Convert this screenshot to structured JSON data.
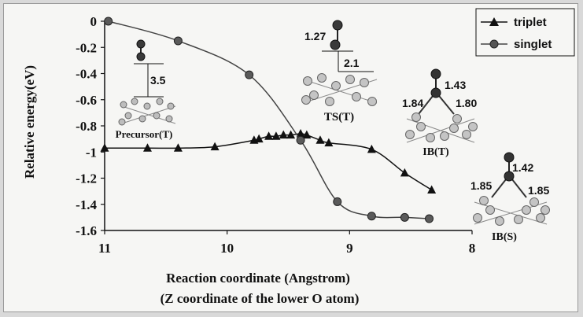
{
  "chart_data": {
    "type": "line",
    "title": "",
    "xlabel": "Reaction coordinate (Angstrom)",
    "xlabel2": "(Z coordinate of the lower O atom)",
    "ylabel": "Relative energy(eV)",
    "xlim": [
      11,
      8
    ],
    "ylim": [
      -1.6,
      0
    ],
    "x_ticks": [
      "11",
      "10",
      "9",
      "8"
    ],
    "y_ticks": [
      "0",
      "-0.2",
      "-0.4",
      "-0.6",
      "-0.8",
      "-1",
      "-1.2",
      "-1.4",
      "-1.6"
    ],
    "legend_position": "top-right",
    "grid": false,
    "series": [
      {
        "name": "triplet",
        "marker": "triangle",
        "color": "#111111",
        "x": [
          11.0,
          10.65,
          10.4,
          10.1,
          9.78,
          9.74,
          9.66,
          9.6,
          9.54,
          9.48,
          9.4,
          9.35,
          9.24,
          9.17,
          8.82,
          8.55,
          8.33
        ],
        "y": [
          -0.97,
          -0.97,
          -0.97,
          -0.96,
          -0.91,
          -0.9,
          -0.88,
          -0.88,
          -0.87,
          -0.87,
          -0.86,
          -0.87,
          -0.91,
          -0.93,
          -0.98,
          -1.16,
          -1.29
        ]
      },
      {
        "name": "singlet",
        "marker": "circle",
        "color": "#555555",
        "x": [
          10.97,
          10.4,
          9.82,
          9.4,
          9.1,
          8.82,
          8.55,
          8.35
        ],
        "y": [
          0.0,
          -0.15,
          -0.41,
          -0.91,
          -1.38,
          -1.49,
          -1.5,
          -1.51
        ]
      }
    ],
    "annotations": [
      {
        "id": "precursor",
        "label": "Precursor(T)",
        "distance": "3.5"
      },
      {
        "id": "ts",
        "label": "TS(T)",
        "bond": "1.27",
        "distance": "2.1"
      },
      {
        "id": "ibt",
        "label": "IB(T)",
        "top": "1.43",
        "left": "1.84",
        "right": "1.80"
      },
      {
        "id": "ibs",
        "label": "IB(S)",
        "top": "1.42",
        "left": "1.85",
        "right": "1.85"
      }
    ]
  }
}
